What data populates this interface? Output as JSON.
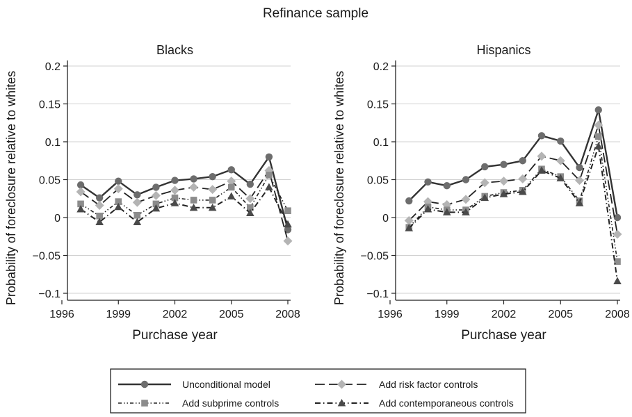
{
  "figure_title": "Refinance sample",
  "chart_data": [
    {
      "type": "line",
      "title": "Blacks",
      "xlabel": "Purchase year",
      "ylabel": "Probability of foreclosure relative to whites",
      "xlim": [
        1996,
        2008
      ],
      "ylim": [
        -0.1,
        0.2
      ],
      "x_ticks": [
        1996,
        1999,
        2002,
        2005,
        2008
      ],
      "y_ticks": [
        -0.1,
        -0.05,
        0,
        0.05,
        0.1,
        0.15,
        0.2
      ],
      "y_tick_labels": [
        "−0.1",
        "−0.05",
        "0",
        "0.05",
        "0.1",
        "0.15",
        "0.2"
      ],
      "grid": "horizontal",
      "x": [
        1997,
        1998,
        1999,
        2000,
        2001,
        2002,
        2003,
        2004,
        2005,
        2006,
        2007,
        2008
      ],
      "series": [
        {
          "name": "Unconditional model",
          "values": [
            0.043,
            0.026,
            0.048,
            0.03,
            0.04,
            0.049,
            0.051,
            0.054,
            0.063,
            0.044,
            0.08,
            -0.016
          ]
        },
        {
          "name": "Add risk factor controls",
          "values": [
            0.034,
            0.016,
            0.038,
            0.02,
            0.029,
            0.036,
            0.04,
            0.037,
            0.048,
            0.025,
            0.062,
            -0.031
          ]
        },
        {
          "name": "Add subprime controls",
          "values": [
            0.018,
            0.002,
            0.021,
            0.003,
            0.018,
            0.026,
            0.023,
            0.023,
            0.04,
            0.013,
            0.056,
            0.009
          ]
        },
        {
          "name": "Add contemporaneous controls",
          "values": [
            0.011,
            -0.006,
            0.014,
            -0.006,
            0.012,
            0.019,
            0.013,
            0.013,
            0.028,
            0.006,
            0.04,
            -0.009
          ]
        }
      ]
    },
    {
      "type": "line",
      "title": "Hispanics",
      "xlabel": "Purchase year",
      "ylabel": "Probability of foreclosure relative to whites",
      "xlim": [
        1996,
        2008
      ],
      "ylim": [
        -0.1,
        0.2
      ],
      "x_ticks": [
        1996,
        1999,
        2002,
        2005,
        2008
      ],
      "y_ticks": [
        -0.1,
        -0.05,
        0,
        0.05,
        0.1,
        0.15,
        0.2
      ],
      "y_tick_labels": [
        "−0.1",
        "−0.05",
        "0",
        "0.05",
        "0.1",
        "0.15",
        "0.2"
      ],
      "grid": "horizontal",
      "x": [
        1997,
        1998,
        1999,
        2000,
        2001,
        2002,
        2003,
        2004,
        2005,
        2006,
        2007,
        2008
      ],
      "series": [
        {
          "name": "Unconditional model",
          "values": [
            0.022,
            0.047,
            0.042,
            0.05,
            0.067,
            0.07,
            0.075,
            0.108,
            0.101,
            0.066,
            0.142,
            0.0
          ]
        },
        {
          "name": "Add risk factor controls",
          "values": [
            -0.004,
            0.021,
            0.017,
            0.024,
            0.046,
            0.048,
            0.051,
            0.081,
            0.075,
            0.049,
            0.122,
            -0.022
          ]
        },
        {
          "name": "Add subprime controls",
          "values": [
            -0.013,
            0.014,
            0.01,
            0.01,
            0.028,
            0.033,
            0.036,
            0.064,
            0.054,
            0.022,
            0.107,
            -0.058
          ]
        },
        {
          "name": "Add contemporaneous controls",
          "values": [
            -0.014,
            0.011,
            0.007,
            0.007,
            0.026,
            0.031,
            0.034,
            0.062,
            0.052,
            0.019,
            0.094,
            -0.084
          ]
        }
      ]
    }
  ],
  "legend": {
    "placement": "bottom-center",
    "items": [
      {
        "label": "Unconditional model",
        "color": "#333333",
        "marker": "circle",
        "marker_color": "#6d6d6d",
        "dash": "solid"
      },
      {
        "label": "Add risk factor controls",
        "color": "#222222",
        "marker": "diamond",
        "marker_color": "#b4b4b4",
        "dash": "long-dash"
      },
      {
        "label": "Add subprime controls",
        "color": "#222222",
        "marker": "square",
        "marker_color": "#8c8c8c",
        "dash": "dash-dot-dot"
      },
      {
        "label": "Add contemporaneous controls",
        "color": "#222222",
        "marker": "triangle",
        "marker_color": "#4a4a4a",
        "dash": "dash-dot"
      }
    ]
  }
}
